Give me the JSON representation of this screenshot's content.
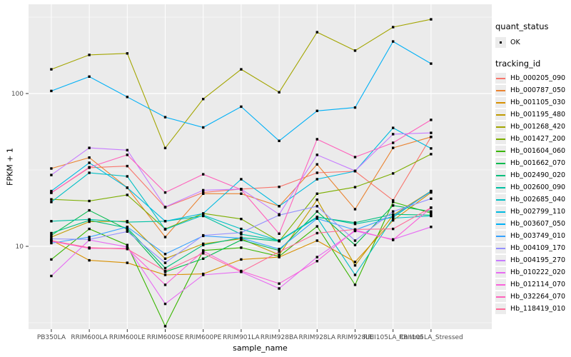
{
  "figure": {
    "background": "#FFFFFF",
    "panel_bg": "#EBEBEB",
    "grid_color": "#FFFFFF",
    "axis_text_color": "#4D4D4D",
    "tick_color": "#333333",
    "point_color": "#000000"
  },
  "legend": {
    "quant_status_title": "quant_status",
    "quant_status_value": "OK",
    "tracking_title": "tracking_id"
  },
  "chart_data": {
    "type": "line",
    "title": "",
    "xlabel": "sample_name",
    "ylabel": "FPKM + 1",
    "y_scale": "log10",
    "y_ticks": [
      10,
      100
    ],
    "y_minor_ticks": [
      3.162,
      31.62,
      316.2
    ],
    "ylim_approx": [
      2.9,
      380
    ],
    "grid": true,
    "legend_position": "right",
    "marker": "small-black-square",
    "categories": [
      "PB350LA",
      "RRIM600LA",
      "RRIM600LE",
      "RRIM600SE",
      "RRIM600PE",
      "RRIM901LA",
      "RRIM928BA",
      "RRIM928LA",
      "RRIM928LE",
      "RRII105LA_Control",
      "RRII105LA_Stressed"
    ],
    "series": [
      {
        "name": "Hb_000205_090",
        "color": "#F8766D",
        "values": [
          22.4,
          32.7,
          33.5,
          18.0,
          22.5,
          23.7,
          24.5,
          30.3,
          31.0,
          20.0,
          52.0
        ]
      },
      {
        "name": "Hb_000787_050",
        "color": "#EA8331",
        "values": [
          32.3,
          38.1,
          24.2,
          11.5,
          22.1,
          22.1,
          18.3,
          34.4,
          17.5,
          44.1,
          52.0
        ]
      },
      {
        "name": "Hb_001105_030",
        "color": "#D89000",
        "values": [
          11.0,
          8.1,
          7.8,
          6.5,
          6.6,
          8.2,
          8.5,
          10.9,
          7.9,
          14.8,
          22.5
        ]
      },
      {
        "name": "Hb_001195_480",
        "color": "#C09B00",
        "values": [
          11.5,
          14.5,
          14.6,
          8.3,
          10.4,
          11.2,
          8.8,
          20.2,
          7.5,
          16.0,
          23.0
        ]
      },
      {
        "name": "Hb_001268_420",
        "color": "#A3A500",
        "values": [
          144,
          179,
          183,
          44,
          92,
          144,
          102,
          252,
          191,
          272,
          306
        ]
      },
      {
        "name": "Hb_001427_200",
        "color": "#7CAE00",
        "values": [
          20.3,
          19.8,
          21.7,
          13.0,
          16.4,
          15.1,
          10.8,
          22.1,
          24.4,
          30.0,
          40.1
        ]
      },
      {
        "name": "Hb_001604_060",
        "color": "#39B600",
        "values": [
          8.2,
          13.0,
          10.2,
          3.0,
          9.4,
          9.8,
          8.6,
          13.5,
          5.6,
          19.5,
          16.5
        ]
      },
      {
        "name": "Hb_001662_070",
        "color": "#00BB4E",
        "values": [
          11.8,
          17.2,
          12.9,
          6.8,
          8.3,
          11.0,
          9.4,
          16.9,
          10.2,
          18.5,
          16.9
        ]
      },
      {
        "name": "Hb_002490_020",
        "color": "#00BF7D",
        "values": [
          12.2,
          14.8,
          13.2,
          7.2,
          10.2,
          11.4,
          10.8,
          15.5,
          14.3,
          16.2,
          16.0
        ]
      },
      {
        "name": "Hb_002600_090",
        "color": "#00C1A3",
        "values": [
          14.6,
          15.0,
          14.4,
          14.6,
          15.8,
          12.0,
          10.9,
          15.6,
          14.0,
          15.5,
          23.0
        ]
      },
      {
        "name": "Hb_002685_040",
        "color": "#00BFC4",
        "values": [
          19.5,
          30.3,
          28.7,
          12.9,
          16.0,
          13.0,
          10.9,
          15.4,
          6.5,
          15.3,
          15.8
        ]
      },
      {
        "name": "Hb_002799_110",
        "color": "#00BAE0",
        "values": [
          23.0,
          35.2,
          24.2,
          14.6,
          16.4,
          27.5,
          18.3,
          27.5,
          31.0,
          59.6,
          43.7
        ]
      },
      {
        "name": "Hb_003607_050",
        "color": "#00B0F6",
        "values": [
          104,
          129,
          95,
          70,
          60,
          82,
          49,
          77,
          81,
          219,
          157
        ]
      },
      {
        "name": "Hb_003749_010",
        "color": "#35A2FF",
        "values": [
          10.5,
          11.5,
          13.4,
          8.9,
          11.7,
          11.3,
          9.6,
          15.2,
          12.8,
          15.8,
          22.8
        ]
      },
      {
        "name": "Hb_004109_170",
        "color": "#9590FF",
        "values": [
          11.2,
          11.1,
          12.5,
          7.8,
          11.8,
          12.3,
          16.0,
          18.3,
          10.9,
          16.9,
          20.5
        ]
      },
      {
        "name": "Hb_004195_270",
        "color": "#C77CFF",
        "values": [
          29.3,
          44.1,
          42.6,
          18.1,
          23.3,
          23.7,
          16.2,
          39.7,
          31.2,
          54.2,
          55.3
        ]
      },
      {
        "name": "Hb_010222_020",
        "color": "#E76BF3",
        "values": [
          6.4,
          11.0,
          9.9,
          4.2,
          6.5,
          6.8,
          5.3,
          8.5,
          12.6,
          11.1,
          13.4
        ]
      },
      {
        "name": "Hb_012114_070",
        "color": "#FA62DB",
        "values": [
          10.8,
          9.7,
          9.7,
          5.6,
          9.3,
          6.9,
          5.7,
          8.0,
          12.8,
          11.0,
          17.9
        ]
      },
      {
        "name": "Hb_032264_070",
        "color": "#FF62BC",
        "values": [
          22.4,
          32.9,
          39.7,
          22.5,
          29.6,
          23.5,
          12.1,
          50.2,
          38.4,
          47.6,
          67.2
        ]
      },
      {
        "name": "Hb_118419_010",
        "color": "#FF6A98",
        "values": [
          10.9,
          9.8,
          9.6,
          6.9,
          9.0,
          6.8,
          9.2,
          12.2,
          12.9,
          13.0,
          17.9
        ]
      }
    ]
  }
}
